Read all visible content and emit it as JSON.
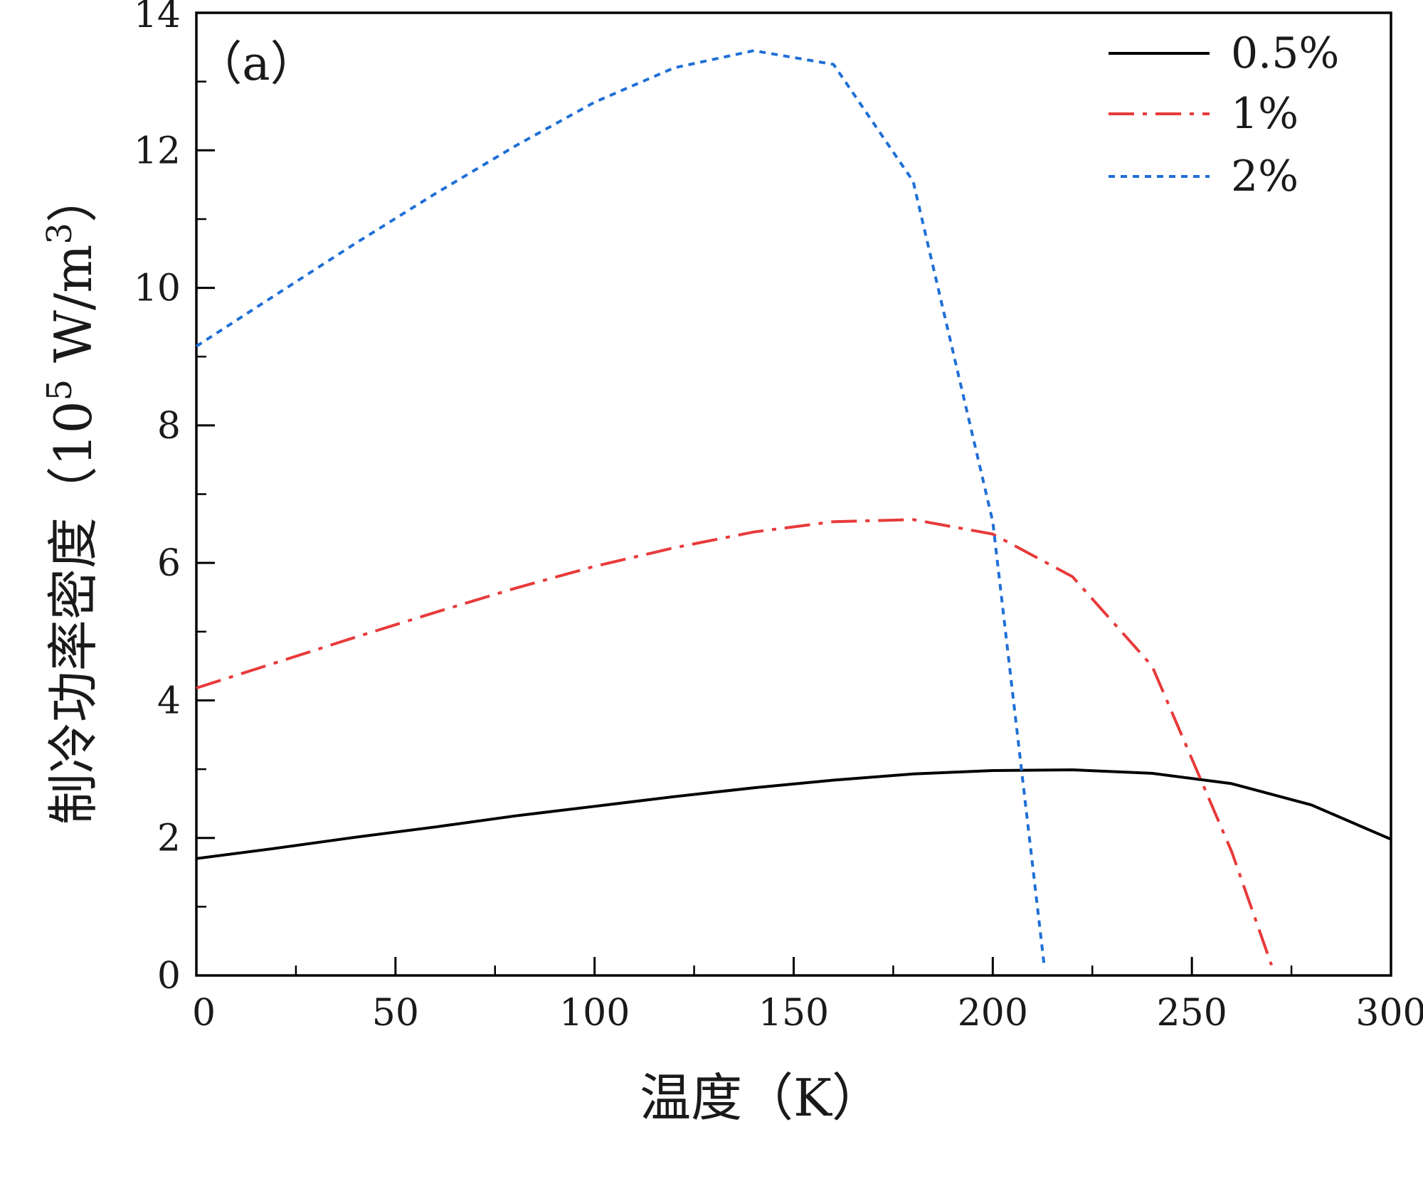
{
  "chart_data": {
    "type": "line",
    "panel_label": "（a）",
    "xlabel": "温度（K）",
    "ylabel_prefix": "制冷功率密度（10",
    "ylabel_exp1": "5",
    "ylabel_mid": " W/m",
    "ylabel_exp2": "3",
    "ylabel_suffix": "）",
    "xlim": [
      0,
      300
    ],
    "ylim": [
      0,
      14
    ],
    "x_major_ticks": [
      0,
      50,
      100,
      150,
      200,
      250,
      300
    ],
    "x_tick_labels": [
      "0",
      "50",
      "100",
      "150",
      "200",
      "250",
      "300"
    ],
    "x_minor_ticks": [
      25,
      75,
      125,
      175,
      225,
      275
    ],
    "y_major_ticks": [
      0,
      2,
      4,
      6,
      8,
      10,
      12,
      14
    ],
    "y_tick_labels": [
      "0",
      "2",
      "4",
      "6",
      "8",
      "10",
      "12",
      "14"
    ],
    "y_minor_ticks": [
      1,
      3,
      5,
      7,
      9,
      11,
      13
    ],
    "legend_position": "top-right",
    "series": [
      {
        "name": "0.5%",
        "color": "#000000",
        "style": "solid",
        "x": [
          0,
          20,
          40,
          60,
          80,
          100,
          120,
          140,
          160,
          180,
          200,
          220,
          240,
          260,
          280,
          300
        ],
        "y": [
          1.7,
          1.85,
          2.01,
          2.16,
          2.32,
          2.46,
          2.6,
          2.73,
          2.84,
          2.93,
          2.98,
          2.99,
          2.94,
          2.79,
          2.48,
          1.98
        ]
      },
      {
        "name": "1%",
        "color": "#e83a3a",
        "style": "dashdot",
        "x": [
          0,
          20,
          40,
          60,
          80,
          100,
          120,
          140,
          160,
          180,
          200,
          220,
          240,
          260,
          270
        ],
        "y": [
          4.18,
          4.55,
          4.92,
          5.28,
          5.63,
          5.95,
          6.22,
          6.45,
          6.6,
          6.63,
          6.42,
          5.8,
          4.5,
          1.8,
          0.15
        ]
      },
      {
        "name": "2%",
        "color": "#1f6fd6",
        "style": "dot",
        "x": [
          0,
          20,
          40,
          60,
          80,
          100,
          120,
          140,
          160,
          180,
          200,
          213
        ],
        "y": [
          9.15,
          9.9,
          10.65,
          11.37,
          12.06,
          12.7,
          13.2,
          13.45,
          13.25,
          11.55,
          6.6,
          0.1
        ]
      }
    ]
  }
}
